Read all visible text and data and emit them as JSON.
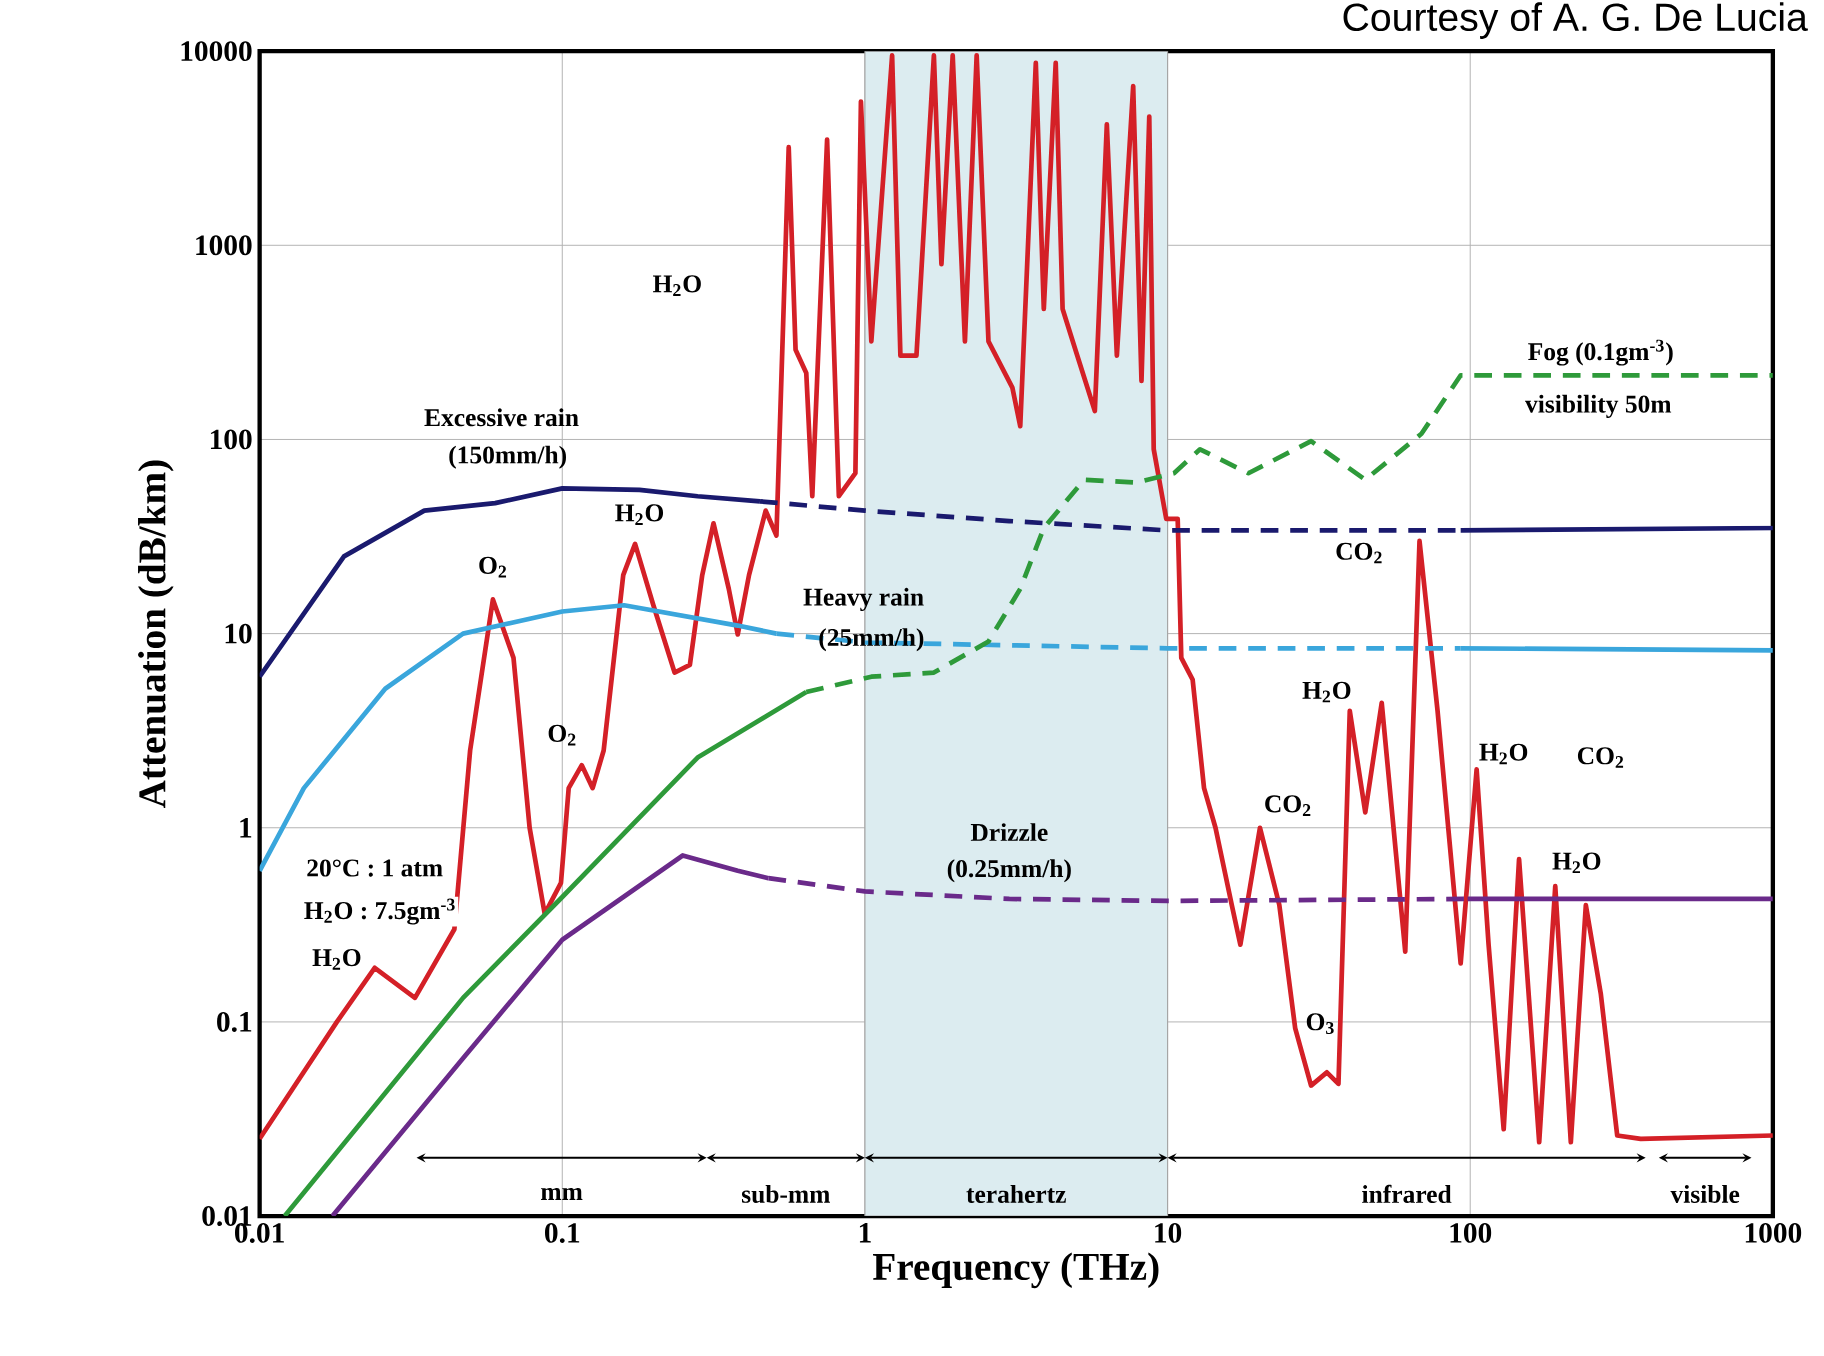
{
  "chart_data": {
    "type": "line",
    "xlabel": "Frequency (THz)",
    "ylabel": "Attenuation (dB/km)",
    "log": "xy",
    "grid": true,
    "xlim": [
      0.01,
      1000
    ],
    "ylim": [
      0.01,
      10000
    ],
    "xticks": [
      0.01,
      0.1,
      1,
      10,
      100,
      1000
    ],
    "yticks": [
      0.01,
      0.1,
      1,
      10,
      100,
      1000,
      10000
    ],
    "series": [
      {
        "color": "#d42027",
        "x": [
          0.01,
          0.018,
          0.024,
          0.0326,
          0.044,
          0.0496,
          0.059,
          0.069,
          0.078,
          0.0875,
          0.099,
          0.105,
          0.116,
          0.126,
          0.137,
          0.159,
          0.174,
          0.2,
          0.235,
          0.264,
          0.29,
          0.316,
          0.355,
          0.38,
          0.414,
          0.47,
          0.51,
          0.56,
          0.59,
          0.64,
          0.67,
          0.75,
          0.82,
          0.93,
          0.97,
          1.05,
          1.23,
          1.31,
          1.48,
          1.69,
          1.79,
          1.95,
          2.14,
          2.34,
          2.56,
          3.07,
          3.26,
          3.67,
          3.9,
          4.27,
          4.5,
          4.96,
          5.75,
          6.3,
          6.8,
          7.7,
          8.2,
          8.7,
          9.0,
          9.9,
          10.8,
          11.1,
          12.1,
          13.2,
          14.4,
          16.3,
          17.4,
          20.2,
          23.4,
          26.4,
          29.8,
          33.6,
          36.7,
          40,
          45,
          51,
          61,
          68,
          78,
          93,
          105,
          115,
          129,
          145,
          169,
          191,
          215,
          241,
          270,
          306,
          366,
          1000
        ],
        "values": [
          0.025,
          0.1,
          0.19,
          0.133,
          0.3,
          2.5,
          15,
          7.5,
          1.0,
          0.36,
          0.52,
          1.6,
          2.1,
          1.6,
          2.5,
          20,
          29,
          14,
          6.3,
          6.9,
          20,
          37,
          17,
          9.9,
          20,
          43,
          32,
          3200,
          290,
          220,
          51,
          3500,
          51,
          67,
          5500,
          320,
          9500,
          270,
          270,
          9500,
          800,
          9500,
          320,
          9500,
          320,
          185,
          117,
          8700,
          470,
          8700,
          470,
          290,
          140,
          4200,
          270,
          6600,
          200,
          4600,
          89,
          39,
          39,
          7.5,
          5.8,
          1.6,
          1.0,
          0.4,
          0.25,
          1.0,
          0.4,
          0.093,
          0.047,
          0.055,
          0.048,
          4.0,
          1.2,
          4.4,
          0.23,
          30,
          4.0,
          0.2,
          2.0,
          0.25,
          0.028,
          0.69,
          0.024,
          0.5,
          0.024,
          0.4,
          0.14,
          0.026,
          0.025,
          0.026
        ]
      },
      {
        "color": "#1a1a6e",
        "x": [
          0.01,
          0.019,
          0.035,
          0.06,
          0.1,
          0.18,
          0.28,
          0.45
        ],
        "values": [
          6,
          25,
          43,
          47,
          56,
          55,
          51,
          48
        ]
      },
      {
        "color": "#1a1a6e",
        "line_style": "dashed",
        "x": [
          0.45,
          1,
          3,
          10,
          93
        ],
        "values": [
          48,
          43,
          38,
          34,
          34
        ]
      },
      {
        "color": "#1a1a6e",
        "x": [
          93,
          1000
        ],
        "values": [
          34,
          35
        ]
      },
      {
        "color": "#3aa6dc",
        "x": [
          0.01,
          0.014,
          0.026,
          0.047,
          0.1,
          0.16,
          0.38,
          0.51
        ],
        "values": [
          0.6,
          1.6,
          5.2,
          10,
          13,
          14,
          11,
          10
        ]
      },
      {
        "color": "#3aa6dc",
        "line_style": "dashed",
        "x": [
          0.51,
          1,
          10,
          93
        ],
        "values": [
          10,
          9,
          8.4,
          8.4
        ]
      },
      {
        "color": "#3aa6dc",
        "x": [
          93,
          1000
        ],
        "values": [
          8.4,
          8.2
        ]
      },
      {
        "color": "#2e9a3a",
        "x": [
          0.0121,
          0.047,
          0.1,
          0.28,
          0.64
        ],
        "values": [
          0.01,
          0.133,
          0.44,
          2.3,
          5.0
        ]
      },
      {
        "color": "#2e9a3a",
        "line_style": "dashed",
        "x": [
          0.64,
          1.05,
          1.69,
          2.56,
          3.26,
          3.9,
          5.3,
          7.9,
          10.5,
          12.8,
          18.5,
          29.8,
          45,
          69,
          93,
          1000
        ],
        "values": [
          5.0,
          6.0,
          6.3,
          9.1,
          17,
          35,
          62,
          60,
          67,
          89,
          67,
          98,
          62,
          107,
          214,
          214
        ]
      },
      {
        "color": "#6a2a8a",
        "x": [
          0.0174,
          0.047,
          0.1,
          0.25,
          0.38,
          0.48
        ],
        "values": [
          0.01,
          0.065,
          0.265,
          0.72,
          0.6,
          0.55
        ]
      },
      {
        "color": "#6a2a8a",
        "line_style": "dashed",
        "x": [
          0.48,
          1,
          3,
          10,
          98
        ],
        "values": [
          0.55,
          0.47,
          0.43,
          0.42,
          0.43
        ]
      },
      {
        "color": "#6a2a8a",
        "x": [
          98,
          1000
        ],
        "values": [
          0.43,
          0.43
        ]
      }
    ],
    "bands": [
      {
        "axis": "x",
        "from": 1,
        "to": 10,
        "color": "#dcecf0"
      }
    ],
    "annotations": [
      "Courtesy of A. G. De Lucia",
      "H$_{2}$O",
      "Excessive rain",
      "(150mm/h)",
      "O$_{2}$",
      "H$_{2}$O",
      "O$_{2}$",
      "Heavy rain",
      "(25mm/h)",
      "20°C : 1 atm",
      "H$_{2}$O : 7.5gm$^{-3}$",
      "H$_{2}$O",
      "Drizzle",
      "(0.25mm/h)",
      "Fog (0.1gm$^{-3}$)",
      "visibility 50m",
      "CO$_{2}$",
      "H$_{2}$O",
      "CO$_{2}$",
      "O$_{3}$",
      "H$_{2}$O",
      "CO$_{2}$",
      "H$_{2}$O",
      "mm",
      "sub-mm",
      "terahertz",
      "infrared",
      "visible"
    ]
  }
}
